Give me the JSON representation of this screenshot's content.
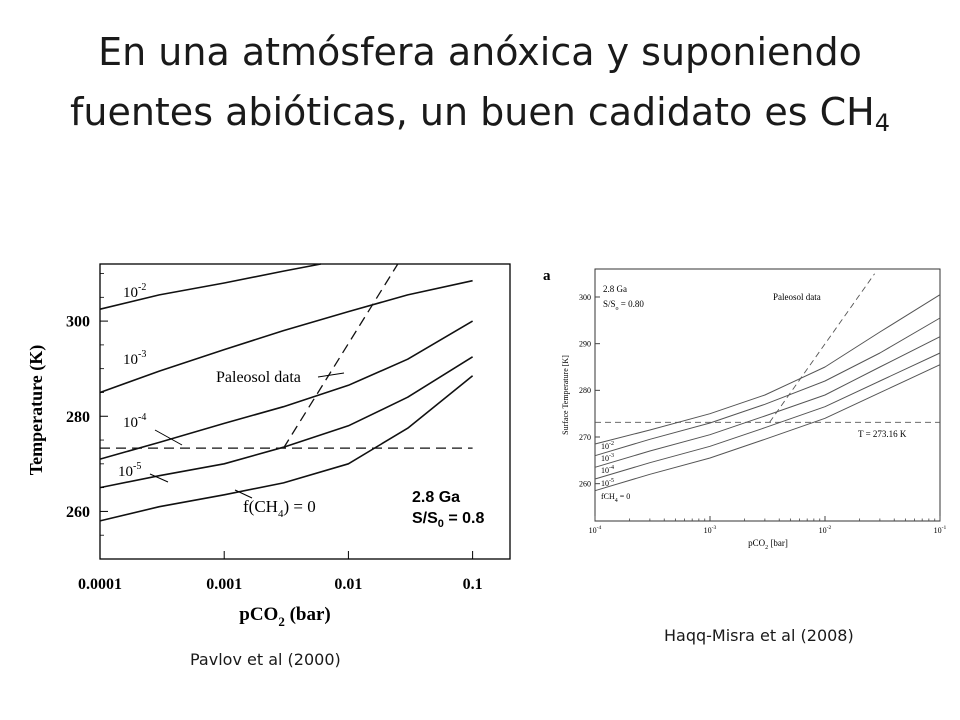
{
  "slide": {
    "title_text": "En una atmósfera anóxica y suponiendo fuentes abióticas, un buen cadidato es CH",
    "title_sub": "4",
    "caption_left": "Pavlov et al (2000)",
    "caption_right": "Haqq-Misra et al (2008)"
  },
  "chart_data": [
    {
      "type": "line",
      "x_scale": "log",
      "xlim": [
        0.0001,
        0.2
      ],
      "ylim": [
        250,
        312
      ],
      "x_ticks": [
        {
          "value": 0.0001,
          "label": "0.0001"
        },
        {
          "value": 0.001,
          "label": "0.001"
        },
        {
          "value": 0.01,
          "label": "0.01"
        },
        {
          "value": 0.1,
          "label": "0.1"
        }
      ],
      "y_ticks": [
        {
          "value": 260,
          "label": "260"
        },
        {
          "value": 280,
          "label": "280"
        },
        {
          "value": 300,
          "label": "300"
        }
      ],
      "xlabel": {
        "main": "pCO",
        "sub": "2",
        "tail": " (bar)"
      },
      "ylabel": "Temperature (K)",
      "series": [
        {
          "name": "10⁻²",
          "label_base": "10",
          "label_exp": "-2",
          "x": [
            0.0001,
            0.0003,
            0.001,
            0.003,
            0.006
          ],
          "y": [
            302.5,
            305.5,
            308,
            310.5,
            312
          ]
        },
        {
          "name": "10⁻³",
          "label_base": "10",
          "label_exp": "-3",
          "x": [
            0.0001,
            0.0003,
            0.001,
            0.003,
            0.01,
            0.03,
            0.1
          ],
          "y": [
            285,
            289.5,
            294,
            298,
            302,
            305.5,
            308.5
          ]
        },
        {
          "name": "10⁻⁴",
          "label_base": "10",
          "label_exp": "-4",
          "x": [
            0.0001,
            0.0003,
            0.001,
            0.003,
            0.01,
            0.03,
            0.1
          ],
          "y": [
            271,
            274.5,
            278.5,
            282,
            286.5,
            292,
            300
          ]
        },
        {
          "name": "10⁻⁵",
          "label_base": "10",
          "label_exp": "-5",
          "x": [
            0.0001,
            0.0003,
            0.001,
            0.003,
            0.01,
            0.03,
            0.1
          ],
          "y": [
            265,
            267.5,
            270,
            273.5,
            278,
            284,
            292.5
          ]
        },
        {
          "name": "f(CH4) = 0",
          "label_base": "f(CH",
          "label_sub": "4",
          "label_tail": ") = 0",
          "x": [
            0.0001,
            0.0003,
            0.001,
            0.003,
            0.01,
            0.03,
            0.1
          ],
          "y": [
            258,
            261,
            263.5,
            266,
            270,
            277.5,
            288.5
          ]
        }
      ],
      "reference_lines": [
        {
          "name": "freezing",
          "style": "dashed",
          "x": [
            0.0001,
            0.1
          ],
          "y": [
            273.3,
            273.3
          ]
        },
        {
          "name": "Paleosol data",
          "style": "dashed",
          "x": [
            0.003,
            0.025
          ],
          "y": [
            273.3,
            312
          ]
        }
      ],
      "annotations": {
        "paleosol_label": "Paleosol data",
        "age": "2.8 Ga",
        "solar_base": "S/S",
        "solar_sub": "0",
        "solar_tail": " = 0.8"
      }
    },
    {
      "type": "line",
      "panel_label": "a",
      "x_scale": "log",
      "xlim": [
        0.0001,
        0.1
      ],
      "ylim": [
        252,
        306
      ],
      "x_ticks": [
        {
          "value": 0.0001,
          "base": "10",
          "exp": "-4"
        },
        {
          "value": 0.001,
          "base": "10",
          "exp": "-3"
        },
        {
          "value": 0.01,
          "base": "10",
          "exp": "-2"
        },
        {
          "value": 0.1,
          "base": "10",
          "exp": "-1"
        }
      ],
      "y_ticks": [
        {
          "value": 260,
          "label": "260"
        },
        {
          "value": 270,
          "label": "270"
        },
        {
          "value": 280,
          "label": "280"
        },
        {
          "value": 290,
          "label": "290"
        },
        {
          "value": 300,
          "label": "300"
        }
      ],
      "xlabel": {
        "main": "pCO",
        "sub": "2",
        "tail": " [bar]"
      },
      "ylabel": "Surface Temperature [K]",
      "series": [
        {
          "name": "10⁻²",
          "label_base": "10",
          "label_exp": "-2",
          "x": [
            0.0001,
            0.0003,
            0.001,
            0.003,
            0.01,
            0.03,
            0.1
          ],
          "y": [
            268.5,
            271.5,
            275,
            279,
            285,
            292.5,
            300.5
          ]
        },
        {
          "name": "10⁻³",
          "label_base": "10",
          "label_exp": "-3",
          "x": [
            0.0001,
            0.0003,
            0.001,
            0.003,
            0.01,
            0.03,
            0.1
          ],
          "y": [
            266,
            269.5,
            273,
            277,
            282,
            288,
            295.5
          ]
        },
        {
          "name": "10⁻⁴",
          "label_base": "10",
          "label_exp": "-4",
          "x": [
            0.0001,
            0.0003,
            0.001,
            0.003,
            0.01,
            0.03,
            0.1
          ],
          "y": [
            263.5,
            267,
            270.5,
            274.5,
            279,
            285,
            291.5
          ]
        },
        {
          "name": "10⁻⁵",
          "label_base": "10",
          "label_exp": "-5",
          "x": [
            0.0001,
            0.0003,
            0.001,
            0.003,
            0.01,
            0.03,
            0.1
          ],
          "y": [
            261,
            264.5,
            268,
            272,
            276.5,
            282,
            288
          ]
        },
        {
          "name": "fCH4 = 0",
          "label_base": "fCH",
          "label_sub": "4",
          "label_tail": " = 0",
          "x": [
            0.0001,
            0.0003,
            0.001,
            0.003,
            0.01,
            0.03,
            0.1
          ],
          "y": [
            258.5,
            262,
            265.5,
            269.5,
            274,
            279.5,
            285.5
          ]
        }
      ],
      "reference_lines": [
        {
          "name": "T = 273.16 K",
          "style": "dashed",
          "x": [
            0.0001,
            0.1
          ],
          "y": [
            273.16,
            273.16
          ]
        },
        {
          "name": "Paleosol data",
          "style": "dashed",
          "x": [
            0.0033,
            0.027
          ],
          "y": [
            273.16,
            305
          ]
        }
      ],
      "annotations": {
        "paleosol_label": "Paleosol data",
        "age": "2.8 Ga",
        "solar_base": "S/S",
        "solar_sub": "o",
        "solar_tail": " = 0.80",
        "freezing_label": "T = 273.16 K"
      }
    }
  ]
}
